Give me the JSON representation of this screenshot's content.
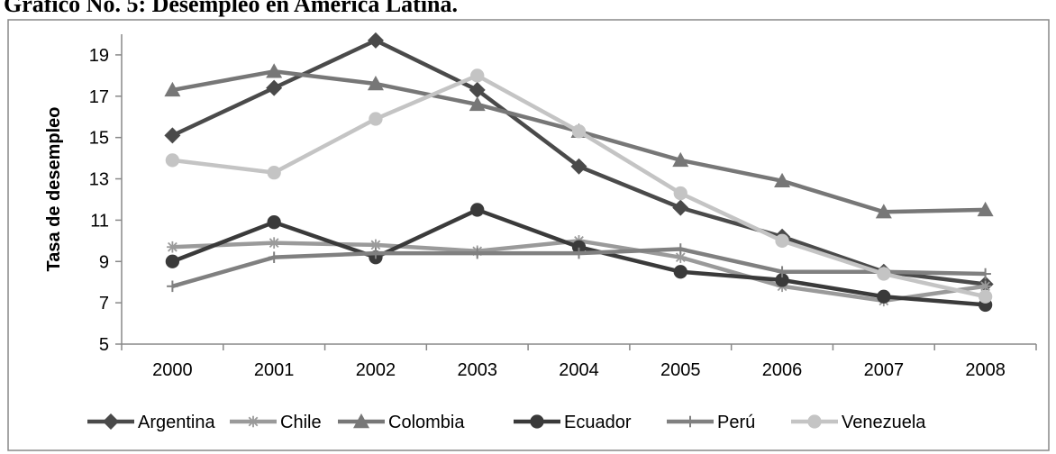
{
  "title": "Gráfico No. 5: Desempleo en América Latina.",
  "chart_data": {
    "type": "line",
    "ylabel": "Tasa de desempleo",
    "xlabel": "",
    "categories": [
      "2000",
      "2001",
      "2002",
      "2003",
      "2004",
      "2005",
      "2006",
      "2007",
      "2008"
    ],
    "ylim": [
      5,
      20
    ],
    "yticks": [
      5,
      7,
      9,
      11,
      13,
      15,
      17,
      19
    ],
    "grid": false,
    "legend": "bottom",
    "series": [
      {
        "name": "Argentina",
        "marker": "diamond",
        "color": "#4a4a4a",
        "values": [
          15.1,
          17.4,
          19.7,
          17.3,
          13.6,
          11.6,
          10.2,
          8.5,
          7.9
        ]
      },
      {
        "name": "Chile",
        "marker": "asterisk",
        "color": "#9a9a9a",
        "values": [
          9.7,
          9.9,
          9.8,
          9.5,
          10.0,
          9.2,
          7.8,
          7.1,
          7.8
        ]
      },
      {
        "name": "Colombia",
        "marker": "triangle",
        "color": "#777777",
        "values": [
          17.3,
          18.2,
          17.6,
          16.6,
          15.3,
          13.9,
          12.9,
          11.4,
          11.5
        ]
      },
      {
        "name": "Ecuador",
        "marker": "circle",
        "color": "#3a3a3a",
        "values": [
          9.0,
          10.9,
          9.2,
          11.5,
          9.7,
          8.5,
          8.1,
          7.3,
          6.9
        ]
      },
      {
        "name": "Perú",
        "marker": "plus",
        "color": "#808080",
        "values": [
          7.8,
          9.2,
          9.4,
          9.4,
          9.4,
          9.6,
          8.5,
          8.5,
          8.4
        ]
      },
      {
        "name": "Venezuela",
        "marker": "circle",
        "color": "#c4c4c4",
        "values": [
          13.9,
          13.3,
          15.9,
          18.0,
          15.3,
          12.3,
          10.0,
          8.4,
          7.3
        ]
      }
    ]
  }
}
